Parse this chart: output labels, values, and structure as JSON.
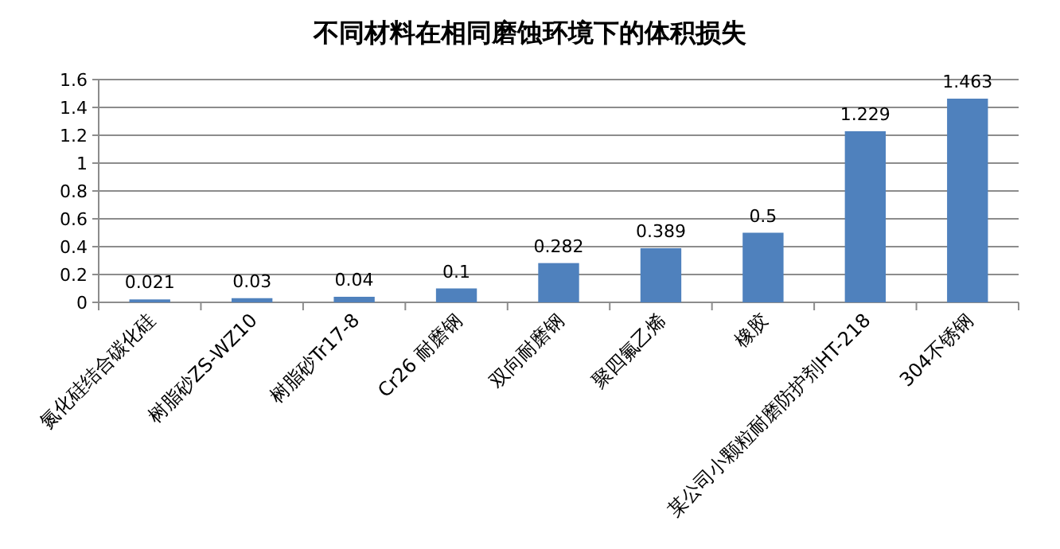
{
  "chart_data": {
    "type": "bar",
    "title": "不同材料在相同磨蚀环境下的体积损失",
    "categories": [
      "氮化硅结合碳化硅",
      "树脂砂ZS-WZ10",
      "树脂砂Tr17-8",
      "Cr26 耐磨钢",
      "双向耐磨钢",
      "聚四氟乙烯",
      "橡胶",
      "某公司小颗粒耐磨防护剂HT-218",
      "304不锈钢"
    ],
    "values": [
      0.021,
      0.03,
      0.04,
      0.1,
      0.282,
      0.389,
      0.5,
      1.229,
      1.463
    ],
    "color": "#4f81bd",
    "ylim": [
      0,
      1.6
    ],
    "yticks": [
      0,
      0.2,
      0.4,
      0.6,
      0.8,
      1,
      1.2,
      1.4,
      1.6
    ],
    "grid": "y",
    "data_labels": true
  }
}
